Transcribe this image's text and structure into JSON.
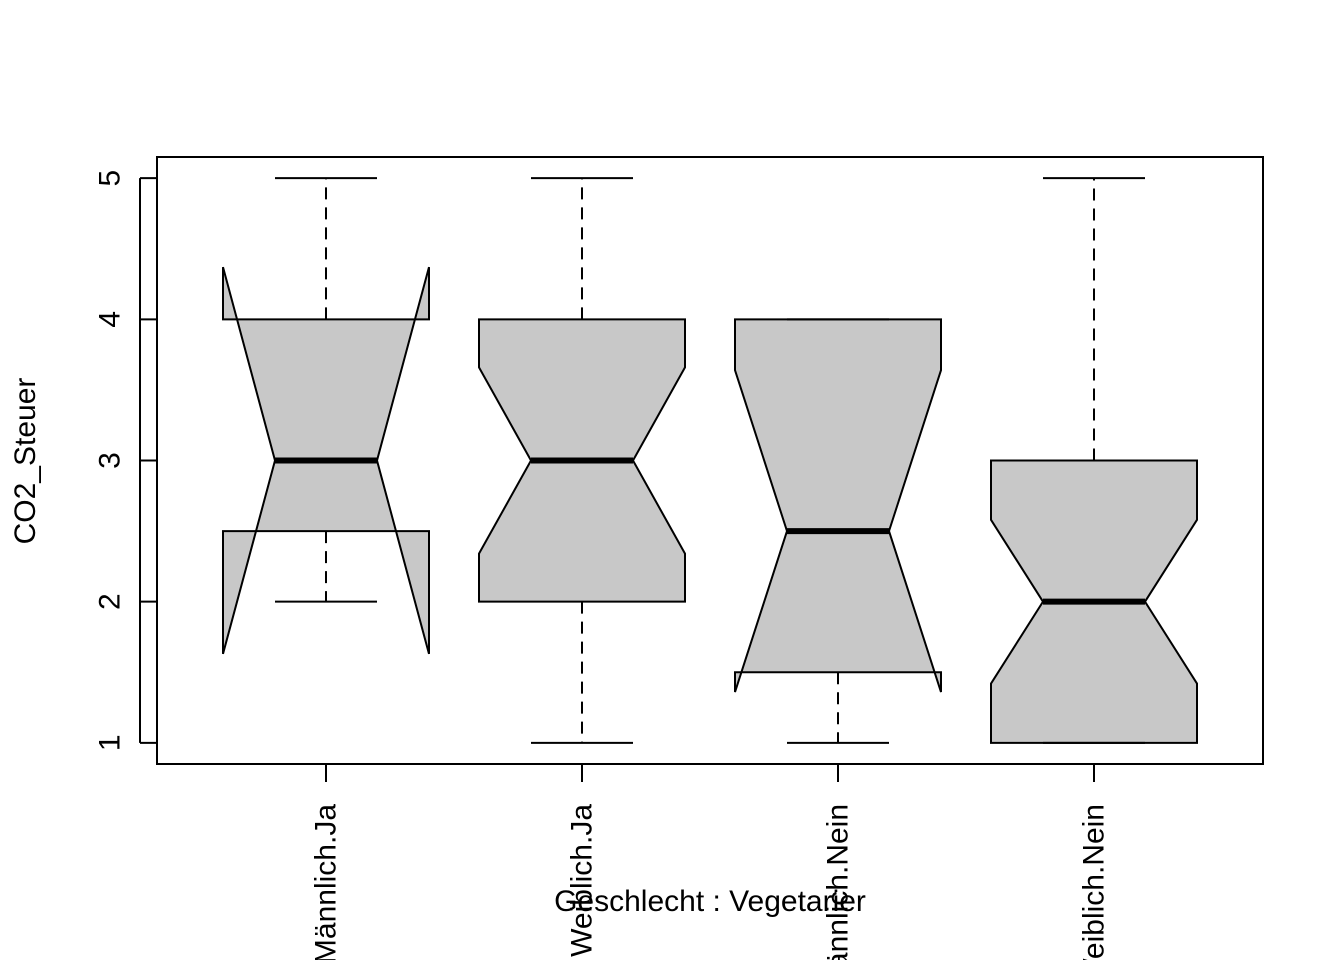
{
  "chart_data": {
    "type": "boxplot",
    "notched": true,
    "xlabel": "Geschlecht : Vegetarier",
    "ylabel": "CO2_Steuer",
    "ylim": [
      0.85,
      5.15
    ],
    "yticks": [
      1,
      2,
      3,
      4,
      5
    ],
    "box_fill": "#c8c8c8",
    "line_color": "#000000",
    "groups": [
      {
        "label": "Männlich.Ja",
        "whisker_low": 2,
        "q1": 2.5,
        "median": 3,
        "q3": 4,
        "whisker_high": 5,
        "notch_low": 1.63,
        "notch_high": 4.37
      },
      {
        "label": "Weiblich.Ja",
        "whisker_low": 1,
        "q1": 2,
        "median": 3,
        "q3": 4,
        "whisker_high": 5,
        "notch_low": 2.34,
        "notch_high": 3.66
      },
      {
        "label": "Männlich.Nein",
        "whisker_low": 1,
        "q1": 1.5,
        "median": 2.5,
        "q3": 4,
        "whisker_high": 4,
        "notch_low": 1.36,
        "notch_high": 3.64
      },
      {
        "label": "Weiblich.Nein",
        "whisker_low": 1,
        "q1": 1,
        "median": 2,
        "q3": 3,
        "whisker_high": 5,
        "notch_low": 1.42,
        "notch_high": 2.58
      }
    ]
  }
}
